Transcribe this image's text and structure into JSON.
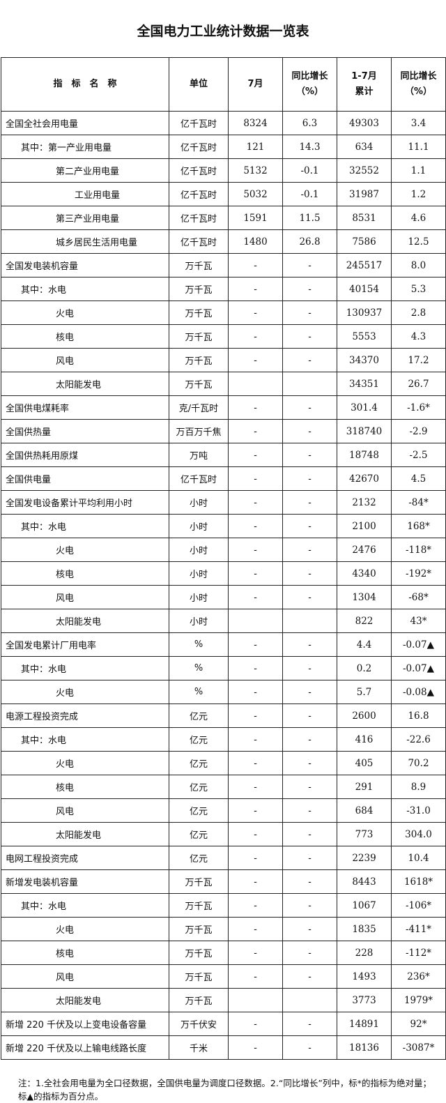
{
  "title": "全国电力工业统计数据一览表",
  "headers": [
    "指　标　名　称",
    "单位",
    "7月",
    "同比增长\n（%）",
    "1-7月\n累计",
    "同比增长\n（%）"
  ],
  "rows": [
    {
      "name": "全国全社会用电量",
      "indent": 0,
      "unit": "亿千瓦时",
      "m7": "8324",
      "m7_yoy": "6.3",
      "ytd": "49303",
      "ytd_yoy": "3.4"
    },
    {
      "name": "其中：第一产业用电量",
      "indent": 1,
      "unit": "亿千瓦时",
      "m7": "121",
      "m7_yoy": "14.3",
      "ytd": "634",
      "ytd_yoy": "11.1"
    },
    {
      "name": "第二产业用电量",
      "indent": 2,
      "unit": "亿千瓦时",
      "m7": "5132",
      "m7_yoy": "-0.1",
      "ytd": "32552",
      "ytd_yoy": "1.1"
    },
    {
      "name": "工业用电量",
      "indent": 3,
      "unit": "亿千瓦时",
      "m7": "5032",
      "m7_yoy": "-0.1",
      "ytd": "31987",
      "ytd_yoy": "1.2"
    },
    {
      "name": "第三产业用电量",
      "indent": 2,
      "unit": "亿千瓦时",
      "m7": "1591",
      "m7_yoy": "11.5",
      "ytd": "8531",
      "ytd_yoy": "4.6"
    },
    {
      "name": "城乡居民生活用电量",
      "indent": 2,
      "unit": "亿千瓦时",
      "m7": "1480",
      "m7_yoy": "26.8",
      "ytd": "7586",
      "ytd_yoy": "12.5"
    },
    {
      "name": "全国发电装机容量",
      "indent": 0,
      "unit": "万千瓦",
      "m7": "-",
      "m7_yoy": "-",
      "ytd": "245517",
      "ytd_yoy": "8.0"
    },
    {
      "name": "其中：水电",
      "indent": 1,
      "unit": "万千瓦",
      "m7": "-",
      "m7_yoy": "-",
      "ytd": "40154",
      "ytd_yoy": "5.3"
    },
    {
      "name": "火电",
      "indent": 2,
      "unit": "万千瓦",
      "m7": "-",
      "m7_yoy": "-",
      "ytd": "130937",
      "ytd_yoy": "2.8"
    },
    {
      "name": "核电",
      "indent": 2,
      "unit": "万千瓦",
      "m7": "-",
      "m7_yoy": "-",
      "ytd": "5553",
      "ytd_yoy": "4.3"
    },
    {
      "name": "风电",
      "indent": 2,
      "unit": "万千瓦",
      "m7": "-",
      "m7_yoy": "-",
      "ytd": "34370",
      "ytd_yoy": "17.2"
    },
    {
      "name": "太阳能发电",
      "indent": 2,
      "unit": "万千瓦",
      "m7": "",
      "m7_yoy": "",
      "ytd": "34351",
      "ytd_yoy": "26.7"
    },
    {
      "name": "全国供电煤耗率",
      "indent": 0,
      "unit": "克/千瓦时",
      "m7": "-",
      "m7_yoy": "-",
      "ytd": "301.4",
      "ytd_yoy": "-1.6*"
    },
    {
      "name": "全国供热量",
      "indent": 0,
      "unit": "万百万千焦",
      "m7": "-",
      "m7_yoy": "-",
      "ytd": "318740",
      "ytd_yoy": "-2.9"
    },
    {
      "name": "全国供热耗用原煤",
      "indent": 0,
      "unit": "万吨",
      "m7": "-",
      "m7_yoy": "-",
      "ytd": "18748",
      "ytd_yoy": "-2.5"
    },
    {
      "name": "全国供电量",
      "indent": 0,
      "unit": "亿千瓦时",
      "m7": "-",
      "m7_yoy": "-",
      "ytd": "42670",
      "ytd_yoy": "4.5"
    },
    {
      "name": "全国发电设备累计平均利用小时",
      "indent": 0,
      "unit": "小时",
      "m7": "-",
      "m7_yoy": "-",
      "ytd": "2132",
      "ytd_yoy": "-84*"
    },
    {
      "name": "其中：水电",
      "indent": 1,
      "unit": "小时",
      "m7": "-",
      "m7_yoy": "-",
      "ytd": "2100",
      "ytd_yoy": "168*"
    },
    {
      "name": "火电",
      "indent": 2,
      "unit": "小时",
      "m7": "-",
      "m7_yoy": "-",
      "ytd": "2476",
      "ytd_yoy": "-118*"
    },
    {
      "name": "核电",
      "indent": 2,
      "unit": "小时",
      "m7": "-",
      "m7_yoy": "-",
      "ytd": "4340",
      "ytd_yoy": "-192*"
    },
    {
      "name": "风电",
      "indent": 2,
      "unit": "小时",
      "m7": "-",
      "m7_yoy": "-",
      "ytd": "1304",
      "ytd_yoy": "-68*"
    },
    {
      "name": "太阳能发电",
      "indent": 2,
      "unit": "小时",
      "m7": "",
      "m7_yoy": "",
      "ytd": "822",
      "ytd_yoy": "43*"
    },
    {
      "name": "全国发电累计厂用电率",
      "indent": 0,
      "unit": "%",
      "m7": "-",
      "m7_yoy": "-",
      "ytd": "4.4",
      "ytd_yoy": "-0.07▲"
    },
    {
      "name": "其中：水电",
      "indent": 1,
      "unit": "%",
      "m7": "-",
      "m7_yoy": "-",
      "ytd": "0.2",
      "ytd_yoy": "-0.07▲"
    },
    {
      "name": "火电",
      "indent": 2,
      "unit": "%",
      "m7": "-",
      "m7_yoy": "-",
      "ytd": "5.7",
      "ytd_yoy": "-0.08▲"
    },
    {
      "name": "电源工程投资完成",
      "indent": 0,
      "unit": "亿元",
      "m7": "-",
      "m7_yoy": "-",
      "ytd": "2600",
      "ytd_yoy": "16.8"
    },
    {
      "name": "其中：水电",
      "indent": 1,
      "unit": "亿元",
      "m7": "-",
      "m7_yoy": "-",
      "ytd": "416",
      "ytd_yoy": "-22.6"
    },
    {
      "name": "火电",
      "indent": 2,
      "unit": "亿元",
      "m7": "-",
      "m7_yoy": "-",
      "ytd": "405",
      "ytd_yoy": "70.2"
    },
    {
      "name": "核电",
      "indent": 2,
      "unit": "亿元",
      "m7": "-",
      "m7_yoy": "-",
      "ytd": "291",
      "ytd_yoy": "8.9"
    },
    {
      "name": "风电",
      "indent": 2,
      "unit": "亿元",
      "m7": "-",
      "m7_yoy": "-",
      "ytd": "684",
      "ytd_yoy": "-31.0"
    },
    {
      "name": "太阳能发电",
      "indent": 2,
      "unit": "亿元",
      "m7": "-",
      "m7_yoy": "-",
      "ytd": "773",
      "ytd_yoy": "304.0"
    },
    {
      "name": "电网工程投资完成",
      "indent": 0,
      "unit": "亿元",
      "m7": "-",
      "m7_yoy": "-",
      "ytd": "2239",
      "ytd_yoy": "10.4"
    },
    {
      "name": "新增发电装机容量",
      "indent": 0,
      "unit": "万千瓦",
      "m7": "-",
      "m7_yoy": "-",
      "ytd": "8443",
      "ytd_yoy": "1618*"
    },
    {
      "name": "其中：水电",
      "indent": 1,
      "unit": "万千瓦",
      "m7": "-",
      "m7_yoy": "-",
      "ytd": "1067",
      "ytd_yoy": "-106*"
    },
    {
      "name": "火电",
      "indent": 2,
      "unit": "万千瓦",
      "m7": "-",
      "m7_yoy": "-",
      "ytd": "1835",
      "ytd_yoy": "-411*"
    },
    {
      "name": "核电",
      "indent": 2,
      "unit": "万千瓦",
      "m7": "-",
      "m7_yoy": "-",
      "ytd": "228",
      "ytd_yoy": "-112*"
    },
    {
      "name": "风电",
      "indent": 2,
      "unit": "万千瓦",
      "m7": "-",
      "m7_yoy": "-",
      "ytd": "1493",
      "ytd_yoy": "236*"
    },
    {
      "name": "太阳能发电",
      "indent": 2,
      "unit": "万千瓦",
      "m7": "",
      "m7_yoy": "",
      "ytd": "3773",
      "ytd_yoy": "1979*"
    },
    {
      "name": "新增 220 千伏及以上变电设备容量",
      "indent": 0,
      "unit": "万千伏安",
      "m7": "-",
      "m7_yoy": "-",
      "ytd": "14891",
      "ytd_yoy": "92*"
    },
    {
      "name": "新增 220 千伏及以上输电线路长度",
      "indent": 0,
      "unit": "千米",
      "m7": "-",
      "m7_yoy": "-",
      "ytd": "18136",
      "ytd_yoy": "-3087*"
    }
  ],
  "note": "注：1.全社会用电量为全口径数据，全国供电量为调度口径数据。2.“同比增长”列中，标*的指标为绝对量；标▲的指标为百分点。"
}
